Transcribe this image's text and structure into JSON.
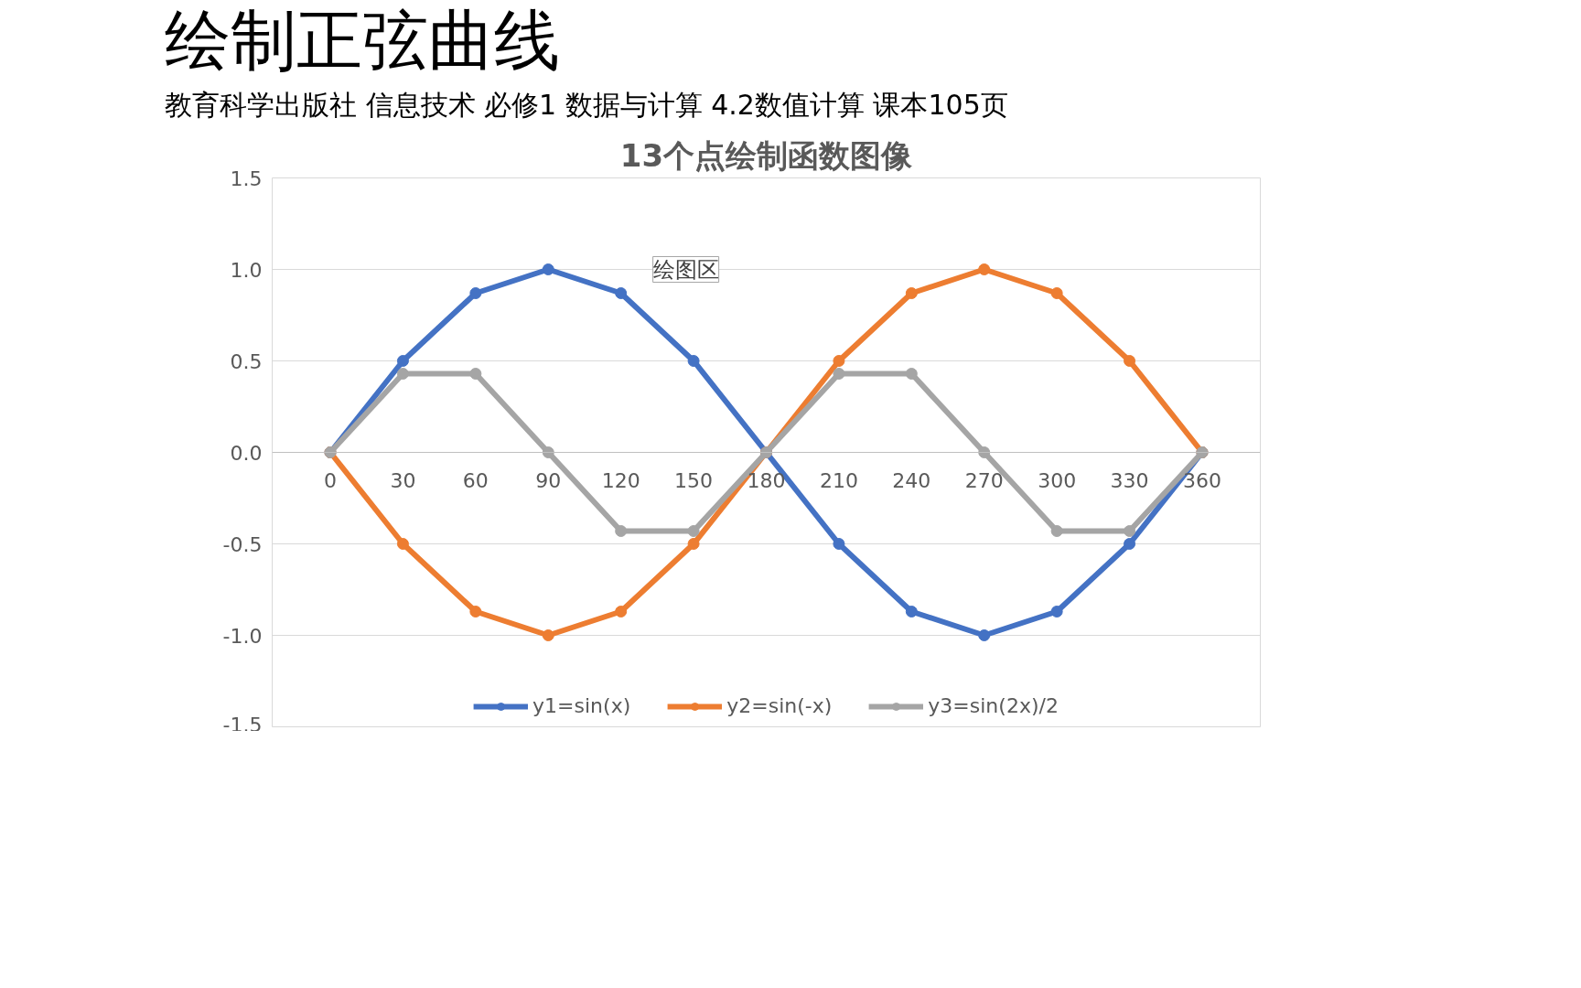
{
  "chart_data": {
    "type": "line",
    "title": "绘制正弦曲线",
    "subtitle": "教育科学出版社 信息技术 必修1 数据与计算 4.2数值计算 课本105页",
    "annotations": [
      "13个点绘制函数图像",
      "绘图区"
    ],
    "categories": [
      "0",
      "30",
      "60",
      "90",
      "120",
      "150",
      "180",
      "210",
      "240",
      "270",
      "300",
      "330",
      "360"
    ],
    "series": [
      {
        "name": "y1=sin(x)",
        "color": "#4472c4",
        "values": [
          0,
          0.5,
          0.87,
          1,
          0.87,
          0.5,
          0,
          -0.5,
          -0.87,
          -1,
          -0.87,
          -0.5,
          0
        ]
      },
      {
        "name": "y2=sin(-x)",
        "color": "#ed7d31",
        "values": [
          0,
          -0.5,
          -0.87,
          -1,
          -0.87,
          -0.5,
          0,
          0.5,
          0.87,
          1,
          0.87,
          0.5,
          0
        ]
      },
      {
        "name": "y3=sin(2x)/2",
        "color": "#a5a5a5",
        "values": [
          0,
          0.43,
          0.43,
          0,
          -0.43,
          -0.43,
          0,
          0.43,
          0.43,
          0,
          -0.43,
          -0.43,
          0
        ]
      }
    ],
    "ylim": [
      -1.5,
      1.5
    ],
    "yticks": [
      {
        "value": -1.5,
        "label": "-1.5"
      },
      {
        "value": -1,
        "label": "-1.0"
      },
      {
        "value": -0.5,
        "label": "-0.5"
      },
      {
        "value": 0,
        "label": "0.0"
      },
      {
        "value": 0.5,
        "label": "0.5"
      },
      {
        "value": 1,
        "label": "1.0"
      },
      {
        "value": 1.5,
        "label": "1.5"
      }
    ],
    "grid": "y",
    "legend": "bottom",
    "marker": "circle",
    "line_style": "solid"
  }
}
